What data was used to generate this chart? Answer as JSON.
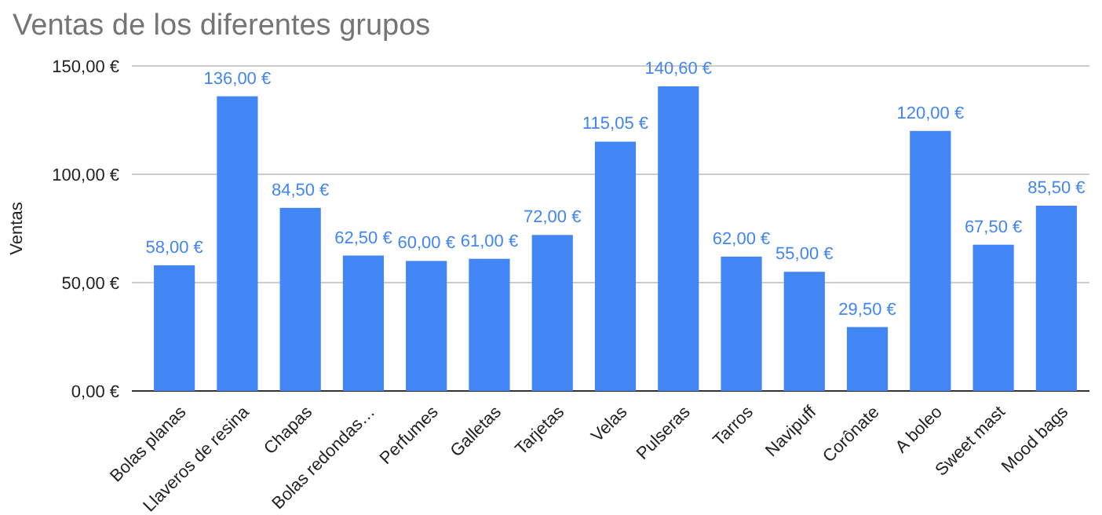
{
  "chart_data": {
    "type": "bar",
    "title": "Ventas de los diferentes grupos",
    "ylabel": "Ventas",
    "categories": [
      "Bolas planas",
      "Llaveros de resina",
      "Chapas",
      "Bolas redondas…",
      "Perfumes",
      "Galletas",
      "Tarjetas",
      "Velas",
      "Pulseras",
      "Tarros",
      "Navipuff",
      "Corônate",
      "A boleo",
      "Sweet mast",
      "Mood bags"
    ],
    "values": [
      58,
      136,
      84.5,
      62.5,
      60,
      61,
      72,
      115.05,
      140.6,
      62,
      55,
      29.5,
      120,
      67.5,
      85.5
    ],
    "value_labels": [
      "58,00 €",
      "136,00 €",
      "84,50 €",
      "62,50 €",
      "60,00 €",
      "61,00 €",
      "72,00 €",
      "115,05 €",
      "140,60 €",
      "62,00 €",
      "55,00 €",
      "29,50 €",
      "120,00 €",
      "67,50 €",
      "85,50 €"
    ],
    "color": "#4285f4",
    "ylim": [
      0,
      150
    ],
    "yticks": [
      {
        "value": 0,
        "label": "0,00 €"
      },
      {
        "value": 50,
        "label": "50,00 €"
      },
      {
        "value": 100,
        "label": "100,00 €"
      },
      {
        "value": 150,
        "label": "150,00 €"
      }
    ],
    "grid": "y"
  }
}
